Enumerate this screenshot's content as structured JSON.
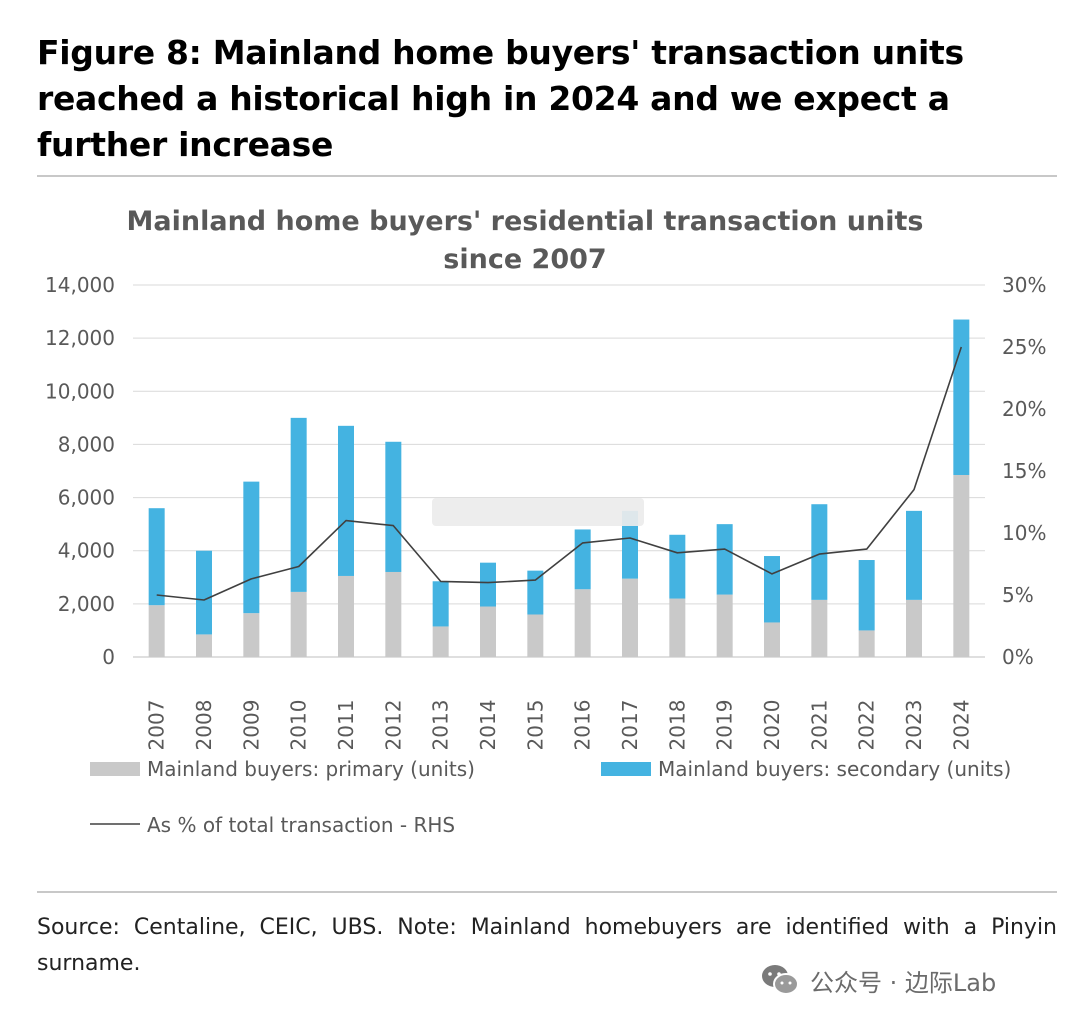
{
  "figure_title": "Figure 8: Mainland home buyers' transaction units reached a historical high in 2024 and we expect a further increase",
  "source_note": "Source: Centaline, CEIC, UBS. Note: Mainland homebuyers are identified with a Pinyin surname.",
  "watermark": {
    "text": "公众号 · 边际Lab",
    "icon": "wechat-icon"
  },
  "colors": {
    "primary": "#c9c9c9",
    "secondary": "#44b3e1",
    "line": "#404040",
    "grid": "#d9d9d9",
    "axis_text": "#595959"
  },
  "chart_data": {
    "type": "bar",
    "stacked": true,
    "title": "Mainland home buyers' residential transaction units",
    "subtitle": "since 2007",
    "categories": [
      "2007",
      "2008",
      "2009",
      "2010",
      "2011",
      "2012",
      "2013",
      "2014",
      "2015",
      "2016",
      "2017",
      "2018",
      "2019",
      "2020",
      "2021",
      "2022",
      "2023",
      "2024"
    ],
    "series": [
      {
        "name": "Mainland buyers: primary (units)",
        "kind": "bar",
        "axis": "left",
        "values": [
          1950,
          850,
          1650,
          2450,
          3050,
          3200,
          1150,
          1900,
          1600,
          2550,
          2950,
          2200,
          2350,
          1300,
          2150,
          1000,
          2150,
          6850
        ]
      },
      {
        "name": "Mainland buyers: secondary (units)",
        "kind": "bar",
        "axis": "left",
        "values": [
          3650,
          3150,
          4950,
          6550,
          5650,
          4900,
          1700,
          1650,
          1650,
          2250,
          2550,
          2400,
          2650,
          2500,
          3600,
          2650,
          3350,
          5850
        ]
      },
      {
        "name": "As % of total transaction - RHS",
        "kind": "line",
        "axis": "right",
        "values": [
          5.0,
          4.6,
          6.3,
          7.3,
          11.0,
          10.6,
          6.1,
          6.0,
          6.2,
          9.2,
          9.6,
          8.4,
          8.7,
          6.7,
          8.3,
          8.7,
          13.5,
          25.0
        ]
      }
    ],
    "y_left": {
      "min": 0,
      "max": 14000,
      "ticks": [
        "0",
        "2,000",
        "4,000",
        "6,000",
        "8,000",
        "10,000",
        "12,000",
        "14,000"
      ]
    },
    "y_right": {
      "min": 0,
      "max": 30,
      "ticks": [
        "0%",
        "5%",
        "10%",
        "15%",
        "20%",
        "25%",
        "30%"
      ]
    },
    "grid": true,
    "legend_position": "bottom"
  }
}
